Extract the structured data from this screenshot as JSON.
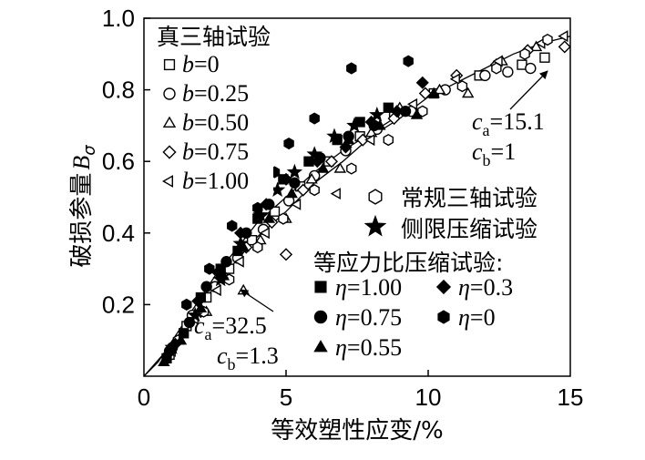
{
  "chart_data": {
    "type": "scatter",
    "xlabel": "等效塑性应变/%",
    "ylabel": "破损参量",
    "ylabel_symbol": "B",
    "ylabel_sub": "σ",
    "xlim": [
      0,
      15
    ],
    "ylim": [
      0,
      1.0
    ],
    "xticks": [
      "0",
      "5",
      "10",
      "15"
    ],
    "yticks": [
      "0.2",
      "0.4",
      "0.6",
      "0.8",
      "1.0"
    ],
    "legend_groups": {
      "true_triaxial": "真三轴试验",
      "conventional": "常规三轴试验",
      "confined": "侧限压缩试验",
      "equal_ratio": "等应力比压缩试验:"
    },
    "series": [
      {
        "name": "b=0",
        "var": "b",
        "val": "=0",
        "marker": "square-open",
        "points": [
          [
            0.9,
            0.06
          ],
          [
            1.5,
            0.14
          ],
          [
            2.2,
            0.22
          ],
          [
            3.0,
            0.3
          ],
          [
            3.8,
            0.38
          ],
          [
            4.6,
            0.46
          ],
          [
            5.5,
            0.53
          ],
          [
            6.5,
            0.6
          ],
          [
            7.6,
            0.67
          ],
          [
            8.8,
            0.73
          ],
          [
            10.2,
            0.79
          ],
          [
            11.8,
            0.84
          ],
          [
            13.3,
            0.87
          ],
          [
            14.1,
            0.89
          ]
        ]
      },
      {
        "name": "b=0.25",
        "var": "b",
        "val": "=0.25",
        "marker": "circle-open",
        "points": [
          [
            1.0,
            0.08
          ],
          [
            1.7,
            0.17
          ],
          [
            2.5,
            0.25
          ],
          [
            3.3,
            0.33
          ],
          [
            4.2,
            0.41
          ],
          [
            5.1,
            0.49
          ],
          [
            6.0,
            0.56
          ],
          [
            7.1,
            0.63
          ],
          [
            8.2,
            0.69
          ],
          [
            9.4,
            0.74
          ],
          [
            10.6,
            0.8
          ],
          [
            12.0,
            0.84
          ],
          [
            12.8,
            0.85
          ],
          [
            13.6,
            0.86
          ]
        ]
      },
      {
        "name": "b=0.50",
        "var": "b",
        "val": "=0.50",
        "marker": "triangle-open",
        "points": [
          [
            1.2,
            0.1
          ],
          [
            2.2,
            0.18
          ],
          [
            3.5,
            0.24
          ],
          [
            4.1,
            0.38
          ],
          [
            5.0,
            0.44
          ],
          [
            5.9,
            0.55
          ],
          [
            6.9,
            0.58
          ],
          [
            8.0,
            0.68
          ],
          [
            9.0,
            0.75
          ],
          [
            10.4,
            0.8
          ],
          [
            11.4,
            0.79
          ],
          [
            12.6,
            0.88
          ],
          [
            13.8,
            0.92
          ]
        ]
      },
      {
        "name": "b=0.75",
        "var": "b",
        "val": "=0.75",
        "marker": "diamond-open",
        "points": [
          [
            1.1,
            0.09
          ],
          [
            2.0,
            0.18
          ],
          [
            2.8,
            0.28
          ],
          [
            3.6,
            0.36
          ],
          [
            4.5,
            0.43
          ],
          [
            5.0,
            0.34
          ],
          [
            5.6,
            0.52
          ],
          [
            6.6,
            0.6
          ],
          [
            7.7,
            0.66
          ],
          [
            8.8,
            0.72
          ],
          [
            9.9,
            0.79
          ],
          [
            11.0,
            0.84
          ],
          [
            12.4,
            0.87
          ],
          [
            13.5,
            0.91
          ],
          [
            14.8,
            0.92
          ]
        ]
      },
      {
        "name": "b=1.00",
        "var": "b",
        "val": "=1.00",
        "marker": "triangle-left-open",
        "points": [
          [
            1.0,
            0.07
          ],
          [
            1.8,
            0.16
          ],
          [
            2.6,
            0.24
          ],
          [
            3.4,
            0.32
          ],
          [
            4.3,
            0.4
          ],
          [
            5.4,
            0.48
          ],
          [
            6.8,
            0.51
          ],
          [
            8.0,
            0.66
          ],
          [
            9.5,
            0.76
          ],
          [
            11.0,
            0.83
          ],
          [
            12.5,
            0.88
          ],
          [
            14.0,
            0.93
          ],
          [
            14.8,
            0.95
          ]
        ]
      },
      {
        "name": "常规三轴试验",
        "marker": "hexagon-open",
        "points": [
          [
            1.2,
            0.1
          ],
          [
            2.1,
            0.18
          ],
          [
            3.0,
            0.27
          ],
          [
            4.0,
            0.36
          ],
          [
            4.9,
            0.44
          ],
          [
            6.0,
            0.52
          ],
          [
            7.3,
            0.58
          ],
          [
            8.6,
            0.66
          ],
          [
            9.8,
            0.74
          ],
          [
            11.2,
            0.81
          ],
          [
            12.4,
            0.86
          ],
          [
            13.4,
            0.9
          ],
          [
            14.2,
            0.94
          ]
        ]
      },
      {
        "name": "侧限压缩试验",
        "marker": "star-filled",
        "points": [
          [
            1.0,
            0.08
          ],
          [
            1.8,
            0.17
          ],
          [
            2.7,
            0.27
          ],
          [
            3.4,
            0.37
          ],
          [
            4.1,
            0.45
          ],
          [
            4.7,
            0.52
          ],
          [
            5.3,
            0.57
          ],
          [
            6.0,
            0.62
          ],
          [
            6.7,
            0.67
          ],
          [
            7.4,
            0.7
          ],
          [
            8.2,
            0.73
          ]
        ]
      },
      {
        "name": "η=1.00",
        "var": "η",
        "val": "=1.00",
        "marker": "square-filled",
        "points": [
          [
            0.8,
            0.05
          ],
          [
            1.4,
            0.12
          ],
          [
            2.0,
            0.22
          ],
          [
            2.7,
            0.3
          ],
          [
            3.3,
            0.35
          ],
          [
            4.0,
            0.44
          ],
          [
            4.9,
            0.55
          ],
          [
            5.8,
            0.6
          ],
          [
            6.8,
            0.66
          ],
          [
            7.6,
            0.71
          ],
          [
            8.6,
            0.75
          ]
        ]
      },
      {
        "name": "η=0.75",
        "var": "η",
        "val": "=0.75",
        "marker": "circle-filled",
        "points": [
          [
            0.9,
            0.07
          ],
          [
            1.6,
            0.15
          ],
          [
            2.2,
            0.25
          ],
          [
            2.9,
            0.32
          ],
          [
            3.6,
            0.4
          ],
          [
            4.4,
            0.48
          ],
          [
            5.3,
            0.54
          ],
          [
            6.2,
            0.61
          ],
          [
            7.2,
            0.67
          ],
          [
            8.1,
            0.7
          ],
          [
            9.2,
            0.74
          ]
        ]
      },
      {
        "name": "η=0.55",
        "var": "η",
        "val": "=0.55",
        "marker": "triangle-filled",
        "points": [
          [
            0.7,
            0.04
          ],
          [
            1.3,
            0.1
          ],
          [
            2.0,
            0.19
          ],
          [
            2.8,
            0.28
          ],
          [
            3.5,
            0.36
          ],
          [
            4.4,
            0.44
          ],
          [
            5.2,
            0.51
          ],
          [
            6.3,
            0.58
          ],
          [
            7.2,
            0.66
          ],
          [
            8.3,
            0.7
          ],
          [
            9.6,
            0.73
          ],
          [
            10.2,
            0.79
          ]
        ]
      },
      {
        "name": "η=0.3",
        "var": "η",
        "val": "=0.3",
        "marker": "diamond-filled",
        "points": [
          [
            1.1,
            0.09
          ],
          [
            1.9,
            0.21
          ],
          [
            2.6,
            0.29
          ],
          [
            3.4,
            0.4
          ],
          [
            4.3,
            0.48
          ],
          [
            5.0,
            0.55
          ],
          [
            6.1,
            0.6
          ],
          [
            7.1,
            0.64
          ],
          [
            8.0,
            0.71
          ],
          [
            8.9,
            0.74
          ],
          [
            9.8,
            0.82
          ]
        ]
      },
      {
        "name": "η=0",
        "var": "η",
        "val": "=0",
        "marker": "hexagon-filled",
        "points": [
          [
            1.5,
            0.2
          ],
          [
            2.3,
            0.3
          ],
          [
            3.1,
            0.42
          ],
          [
            4.0,
            0.47
          ],
          [
            4.6,
            0.57
          ],
          [
            5.1,
            0.65
          ],
          [
            6.0,
            0.72
          ],
          [
            7.3,
            0.86
          ],
          [
            9.3,
            0.88
          ]
        ]
      }
    ],
    "curves": [
      {
        "ca": "32.5",
        "cb": "1.3",
        "points": [
          [
            0,
            0
          ],
          [
            0.5,
            0.04
          ],
          [
            1.0,
            0.1
          ],
          [
            1.5,
            0.16
          ],
          [
            2.0,
            0.22
          ],
          [
            2.5,
            0.28
          ],
          [
            3.0,
            0.33
          ],
          [
            3.5,
            0.38
          ],
          [
            4.0,
            0.43
          ],
          [
            5.0,
            0.5
          ],
          [
            6.0,
            0.57
          ],
          [
            7.0,
            0.63
          ],
          [
            8.0,
            0.68
          ],
          [
            9.0,
            0.73
          ]
        ]
      },
      {
        "ca": "15.1",
        "cb": "1",
        "points": [
          [
            0,
            0
          ],
          [
            1.0,
            0.09
          ],
          [
            2.0,
            0.2
          ],
          [
            3.0,
            0.3
          ],
          [
            4.0,
            0.39
          ],
          [
            5.0,
            0.46
          ],
          [
            6.0,
            0.54
          ],
          [
            7.0,
            0.6
          ],
          [
            8.0,
            0.67
          ],
          [
            9.0,
            0.72
          ],
          [
            10.0,
            0.78
          ],
          [
            11.0,
            0.82
          ],
          [
            12.0,
            0.86
          ],
          [
            13.0,
            0.9
          ],
          [
            14.0,
            0.93
          ],
          [
            15.0,
            0.95
          ]
        ]
      }
    ],
    "annotation_labels": {
      "sym": "c",
      "sub_a": "a",
      "sub_b": "b"
    }
  }
}
